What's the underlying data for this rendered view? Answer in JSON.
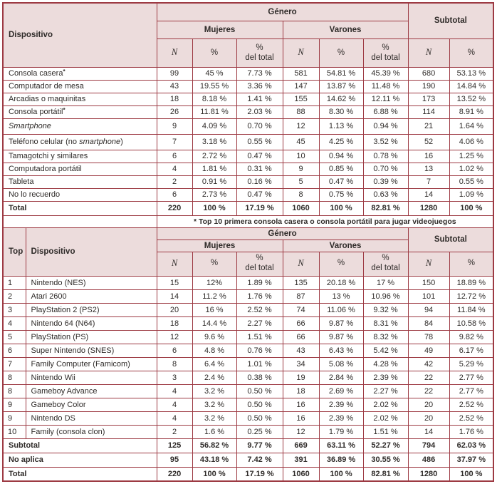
{
  "colors": {
    "border": "#9d3a43",
    "header_bg": "#ecdcdc",
    "text": "#2f2b29",
    "row_bg": "#ffffff"
  },
  "header": {
    "dispositivo": "Dispositivo",
    "top": "Top",
    "genero": "Género",
    "mujeres": "Mujeres",
    "varones": "Varones",
    "subtotal": "Subtotal",
    "n": "N",
    "pct": "%",
    "pct_del": "del total"
  },
  "table1": {
    "note": "* Top 10 primera consola casera o consola portátil para jugar videojuegos",
    "rows": [
      {
        "device": [
          {
            "t": "Consola casera"
          },
          {
            "t": "*",
            "s": true
          }
        ],
        "values": [
          "99",
          "45 %",
          "7.73 %",
          "581",
          "54.81 %",
          "45.39 %",
          "680",
          "53.13 %"
        ]
      },
      {
        "device": [
          {
            "t": "Computador de mesa"
          }
        ],
        "values": [
          "43",
          "19.55 %",
          "3.36 %",
          "147",
          "13.87 %",
          "11.48 %",
          "190",
          "14.84 %"
        ]
      },
      {
        "device": [
          {
            "t": "Arcadias o maquinitas"
          }
        ],
        "values": [
          "18",
          "8.18 %",
          "1.41 %",
          "155",
          "14.62 %",
          "12.11 %",
          "173",
          "13.52 %"
        ]
      },
      {
        "device": [
          {
            "t": "Consola portátil"
          },
          {
            "t": "*",
            "s": true
          }
        ],
        "values": [
          "26",
          "11.81 %",
          "2.03 %",
          "88",
          "8.30 %",
          "6.88 %",
          "114",
          "8.91 %"
        ]
      },
      {
        "device": [
          {
            "t": "Smartphone",
            "i": true
          }
        ],
        "tall": true,
        "values": [
          "9",
          "4.09 %",
          "0.70 %",
          "12",
          "1.13 %",
          "0.94 %",
          "21",
          "1.64 %"
        ]
      },
      {
        "device": [
          {
            "t": "Teléfono celular (no "
          },
          {
            "t": "smartphone",
            "i": true
          },
          {
            "t": ")"
          }
        ],
        "tall": true,
        "values": [
          "7",
          "3.18 %",
          "0.55 %",
          "45",
          "4.25 %",
          "3.52 %",
          "52",
          "4.06 %"
        ]
      },
      {
        "device": [
          {
            "t": "Tamagotchi y similares"
          }
        ],
        "values": [
          "6",
          "2.72 %",
          "0.47 %",
          "10",
          "0.94 %",
          "0.78 %",
          "16",
          "1.25 %"
        ]
      },
      {
        "device": [
          {
            "t": "Computadora portátil"
          }
        ],
        "values": [
          "4",
          "1.81 %",
          "0.31 %",
          "9",
          "0.85 %",
          "0.70 %",
          "13",
          "1.02 %"
        ]
      },
      {
        "device": [
          {
            "t": "Tableta"
          }
        ],
        "values": [
          "2",
          "0.91 %",
          "0.16 %",
          "5",
          "0.47 %",
          "0.39 %",
          "7",
          "0.55 %"
        ]
      },
      {
        "device": [
          {
            "t": "No lo recuerdo"
          }
        ],
        "values": [
          "6",
          "2.73 %",
          "0.47 %",
          "8",
          "0.75 %",
          "0.63 %",
          "14",
          "1.09 %"
        ]
      },
      {
        "device": [
          {
            "t": "Total"
          }
        ],
        "bold": true,
        "total": true,
        "values": [
          "220",
          "100 %",
          "17.19 %",
          "1060",
          "100 %",
          "82.81 %",
          "1280",
          "100 %"
        ]
      }
    ]
  },
  "table2": {
    "rows": [
      {
        "top": "1",
        "device": [
          {
            "t": "Nintendo (NES)"
          }
        ],
        "values": [
          "15",
          "12%",
          "1.89 %",
          "135",
          "20.18 %",
          "17 %",
          "150",
          "18.89 %"
        ]
      },
      {
        "top": "2",
        "device": [
          {
            "t": "Atari 2600"
          }
        ],
        "values": [
          "14",
          "11.2 %",
          "1.76 %",
          "87",
          "13 %",
          "10.96 %",
          "101",
          "12.72 %"
        ]
      },
      {
        "top": "3",
        "device": [
          {
            "t": "PlayStation 2 (PS2)"
          }
        ],
        "values": [
          "20",
          "16 %",
          "2.52 %",
          "74",
          "11.06 %",
          "9.32 %",
          "94",
          "11.84 %"
        ]
      },
      {
        "top": "4",
        "device": [
          {
            "t": "Nintendo 64 (N64)"
          }
        ],
        "values": [
          "18",
          "14.4 %",
          "2.27 %",
          "66",
          "9.87 %",
          "8.31 %",
          "84",
          "10.58 %"
        ]
      },
      {
        "top": "5",
        "device": [
          {
            "t": "PlayStation (PS)"
          }
        ],
        "values": [
          "12",
          "9.6 %",
          "1.51 %",
          "66",
          "9.87 %",
          "8.32 %",
          "78",
          "9.82 %"
        ]
      },
      {
        "top": "6",
        "device": [
          {
            "t": "Super Nintendo (SNES)"
          }
        ],
        "values": [
          "6",
          "4.8 %",
          "0.76 %",
          "43",
          "6.43 %",
          "5.42 %",
          "49",
          "6.17 %"
        ]
      },
      {
        "top": "7",
        "device": [
          {
            "t": "Family Computer (Famicom)"
          }
        ],
        "values": [
          "8",
          "6.4 %",
          "1.01 %",
          "34",
          "5.08 %",
          "4.28 %",
          "42",
          "5.29 %"
        ]
      },
      {
        "top": "8",
        "device": [
          {
            "t": "Nintendo Wii"
          }
        ],
        "values": [
          "3",
          "2.4 %",
          "0.38 %",
          "19",
          "2.84 %",
          "2.39 %",
          "22",
          "2.77 %"
        ]
      },
      {
        "top": "8",
        "device": [
          {
            "t": "Gameboy Advance"
          }
        ],
        "values": [
          "4",
          "3.2 %",
          "0.50 %",
          "18",
          "2.69 %",
          "2.27 %",
          "22",
          "2.77 %"
        ]
      },
      {
        "top": "9",
        "device": [
          {
            "t": "Gameboy Color"
          }
        ],
        "values": [
          "4",
          "3.2 %",
          "0.50 %",
          "16",
          "2.39 %",
          "2.02 %",
          "20",
          "2.52 %"
        ]
      },
      {
        "top": "9",
        "device": [
          {
            "t": "Nintendo DS"
          }
        ],
        "values": [
          "4",
          "3.2 %",
          "0.50 %",
          "16",
          "2.39 %",
          "2.02 %",
          "20",
          "2.52 %"
        ]
      },
      {
        "top": "10",
        "device": [
          {
            "t": "Family (consola clon)"
          }
        ],
        "values": [
          "2",
          "1.6 %",
          "0.25 %",
          "12",
          "1.79 %",
          "1.51 %",
          "14",
          "1.76 %"
        ]
      }
    ],
    "summary": [
      {
        "label": "Subtotal",
        "values": [
          "125",
          "56.82 %",
          "9.77 %",
          "669",
          "63.11 %",
          "52.27 %",
          "794",
          "62.03 %"
        ]
      },
      {
        "label": "No aplica",
        "values": [
          "95",
          "43.18 %",
          "7.42 %",
          "391",
          "36.89 %",
          "30.55 %",
          "486",
          "37.97 %"
        ]
      },
      {
        "label": "Total",
        "values": [
          "220",
          "100 %",
          "17.19 %",
          "1060",
          "100 %",
          "82.81 %",
          "1280",
          "100 %"
        ]
      }
    ]
  }
}
